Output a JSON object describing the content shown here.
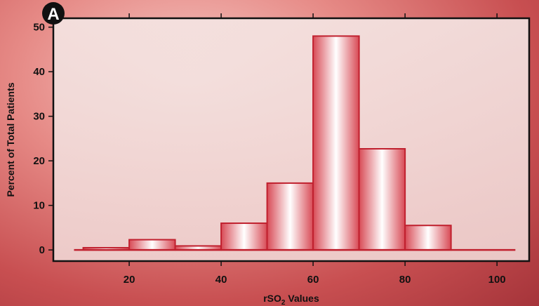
{
  "panel_label": "A",
  "chart_data": {
    "type": "bar",
    "subtype": "histogram",
    "title": "",
    "xlabel": "rSO₂ Values",
    "xlabel_parts": {
      "main": "rSO",
      "sub": "2",
      "suffix": " Values"
    },
    "ylabel": "Percent of Total Patients",
    "bins": [
      {
        "start": 10,
        "end": 20,
        "value": 0.5
      },
      {
        "start": 20,
        "end": 30,
        "value": 2.3
      },
      {
        "start": 30,
        "end": 40,
        "value": 0.9
      },
      {
        "start": 40,
        "end": 50,
        "value": 6.0
      },
      {
        "start": 50,
        "end": 60,
        "value": 15.0
      },
      {
        "start": 60,
        "end": 70,
        "value": 48.0
      },
      {
        "start": 70,
        "end": 80,
        "value": 22.7
      },
      {
        "start": 80,
        "end": 90,
        "value": 5.5
      }
    ],
    "xticks": [
      20,
      40,
      60,
      80,
      100
    ],
    "yticks": [
      0,
      10,
      20,
      30,
      40,
      50
    ],
    "xlim": [
      3.5,
      107
    ],
    "ylim": [
      -2.5,
      52
    ],
    "baseline_range": [
      8,
      104
    ],
    "grid": false,
    "legend": "none",
    "colors": {
      "bar_edge": "#c0202e",
      "bar_center": "#ffffff",
      "bar_side": "#d84a55",
      "baseline": "#c0202e",
      "plot_border": "#111111",
      "panel_badge": "#111111"
    }
  }
}
